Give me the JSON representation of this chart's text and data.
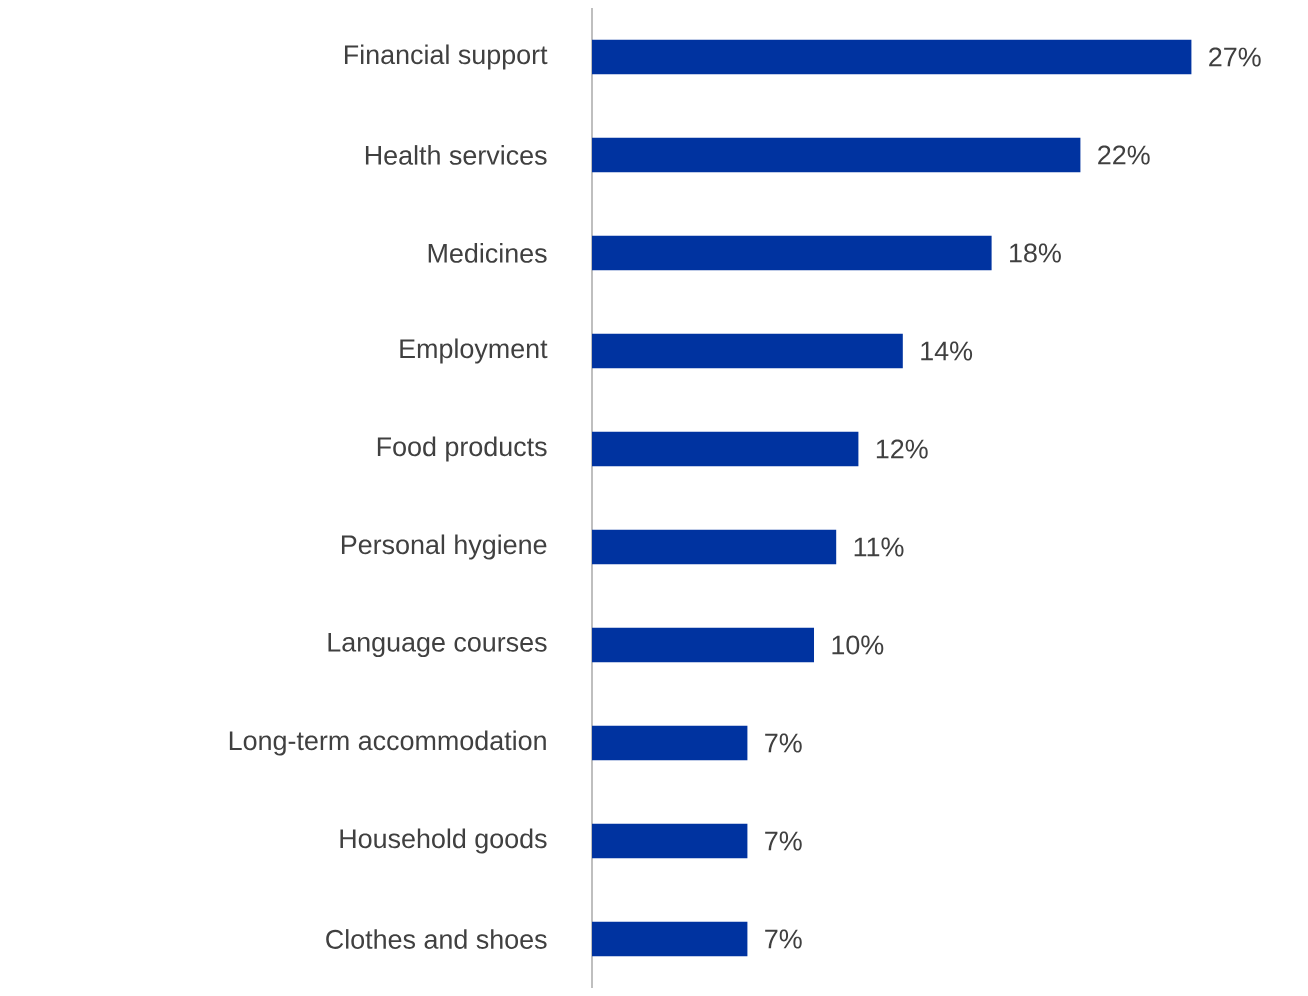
{
  "chart_data": {
    "type": "bar",
    "orientation": "horizontal",
    "color": "#0033a0",
    "categories": [
      "Financial support",
      "Health services",
      "Medicines",
      "Employment",
      "Food products",
      "Personal hygiene",
      "Language courses",
      "Long-term accommodation",
      "Household goods",
      "Clothes and shoes"
    ],
    "values": [
      27,
      22,
      18,
      14,
      12,
      11,
      10,
      7,
      7,
      7
    ],
    "value_labels": [
      "27%",
      "22%",
      "18%",
      "14%",
      "12%",
      "11%",
      "10%",
      "7%",
      "7%",
      "7%"
    ]
  }
}
